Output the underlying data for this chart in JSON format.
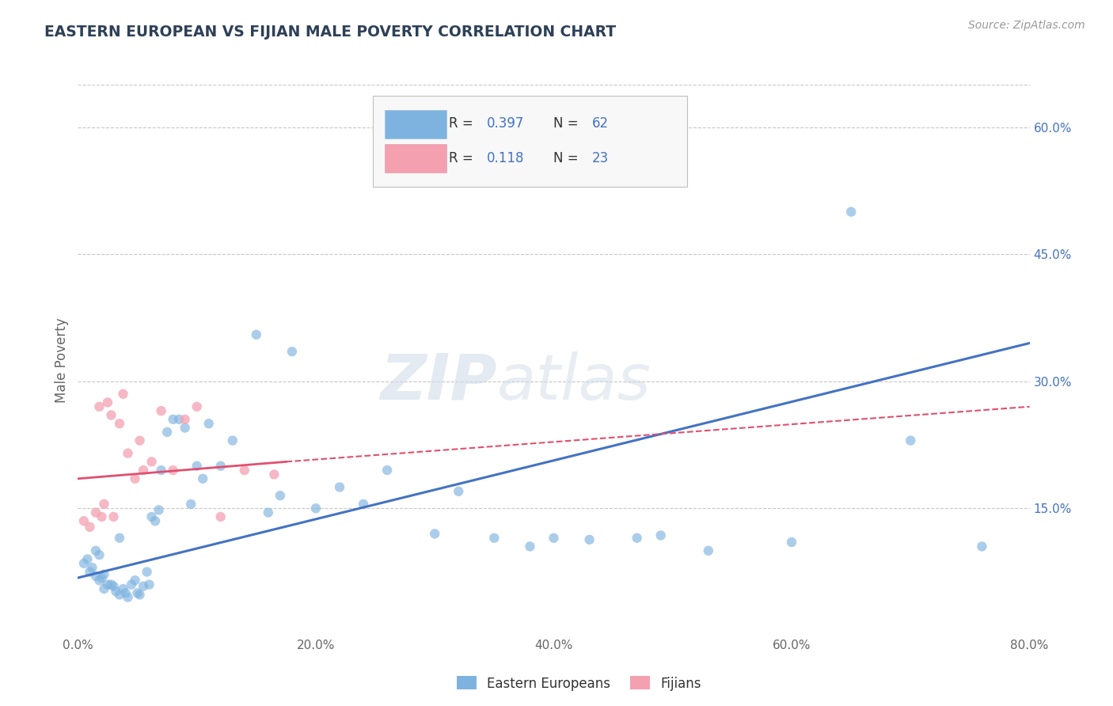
{
  "title": "EASTERN EUROPEAN VS FIJIAN MALE POVERTY CORRELATION CHART",
  "source": "Source: ZipAtlas.com",
  "ylabel": "Male Poverty",
  "xlim": [
    0.0,
    0.8
  ],
  "ylim": [
    0.0,
    0.65
  ],
  "xticks": [
    0.0,
    0.2,
    0.4,
    0.6,
    0.8
  ],
  "xticklabels": [
    "0.0%",
    "20.0%",
    "40.0%",
    "60.0%",
    "80.0%"
  ],
  "ytick_positions": [
    0.15,
    0.3,
    0.45,
    0.6
  ],
  "yticklabels_right": [
    "15.0%",
    "30.0%",
    "45.0%",
    "60.0%"
  ],
  "grid_color": "#c8c8c8",
  "bg_color": "#ffffff",
  "eastern_europeans": {
    "x": [
      0.005,
      0.008,
      0.01,
      0.012,
      0.015,
      0.018,
      0.02,
      0.022,
      0.025,
      0.015,
      0.018,
      0.022,
      0.028,
      0.03,
      0.032,
      0.035,
      0.038,
      0.04,
      0.042,
      0.045,
      0.048,
      0.05,
      0.035,
      0.052,
      0.055,
      0.058,
      0.06,
      0.062,
      0.065,
      0.068,
      0.07,
      0.075,
      0.08,
      0.085,
      0.09,
      0.095,
      0.1,
      0.105,
      0.11,
      0.12,
      0.13,
      0.15,
      0.16,
      0.17,
      0.18,
      0.2,
      0.22,
      0.24,
      0.26,
      0.3,
      0.32,
      0.35,
      0.38,
      0.4,
      0.43,
      0.47,
      0.49,
      0.53,
      0.6,
      0.65,
      0.7,
      0.76
    ],
    "y": [
      0.085,
      0.09,
      0.075,
      0.08,
      0.07,
      0.065,
      0.068,
      0.072,
      0.06,
      0.1,
      0.095,
      0.055,
      0.06,
      0.058,
      0.052,
      0.048,
      0.055,
      0.05,
      0.045,
      0.06,
      0.065,
      0.05,
      0.115,
      0.048,
      0.058,
      0.075,
      0.06,
      0.14,
      0.135,
      0.148,
      0.195,
      0.24,
      0.255,
      0.255,
      0.245,
      0.155,
      0.2,
      0.185,
      0.25,
      0.2,
      0.23,
      0.355,
      0.145,
      0.165,
      0.335,
      0.15,
      0.175,
      0.155,
      0.195,
      0.12,
      0.17,
      0.115,
      0.105,
      0.115,
      0.113,
      0.115,
      0.118,
      0.1,
      0.11,
      0.5,
      0.23,
      0.105
    ],
    "color": "#7eb3e0",
    "R": 0.397,
    "N": 62
  },
  "fijians": {
    "x": [
      0.005,
      0.01,
      0.015,
      0.018,
      0.02,
      0.022,
      0.025,
      0.028,
      0.03,
      0.035,
      0.038,
      0.042,
      0.048,
      0.052,
      0.055,
      0.062,
      0.07,
      0.08,
      0.09,
      0.1,
      0.12,
      0.14,
      0.165
    ],
    "y": [
      0.135,
      0.128,
      0.145,
      0.27,
      0.14,
      0.155,
      0.275,
      0.26,
      0.14,
      0.25,
      0.285,
      0.215,
      0.185,
      0.23,
      0.195,
      0.205,
      0.265,
      0.195,
      0.255,
      0.27,
      0.14,
      0.195,
      0.19
    ],
    "color": "#f4a0b0",
    "R": 0.118,
    "N": 23
  },
  "eastern_line": {
    "x0": 0.0,
    "y0": 0.068,
    "x1": 0.8,
    "y1": 0.345,
    "color": "#4472c4"
  },
  "fijian_line_solid": {
    "x0": 0.0,
    "y0": 0.185,
    "x1": 0.175,
    "y1": 0.205,
    "color": "#e05070"
  },
  "fijian_line_dashed": {
    "x0": 0.175,
    "y0": 0.205,
    "x1": 0.8,
    "y1": 0.27,
    "color": "#e05070"
  },
  "title_color": "#2e4057",
  "axis_color": "#666666",
  "right_label_color": "#4472c4",
  "legend_R_color": "#4472c4",
  "legend_N_color": "#4472c4"
}
